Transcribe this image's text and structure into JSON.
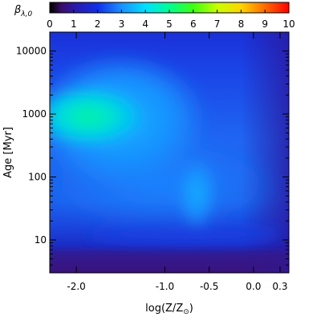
{
  "chart_data": {
    "type": "heatmap",
    "title": "",
    "colorbar": {
      "label": "β",
      "label_sub": "λ,0",
      "range": [
        0,
        10
      ],
      "ticks": [
        0,
        1,
        2,
        3,
        4,
        5,
        6,
        7,
        8,
        9,
        10
      ],
      "tick_labels": [
        "0",
        "1",
        "2",
        "3",
        "4",
        "5",
        "6",
        "7",
        "8",
        "9",
        "10"
      ],
      "colormap": "rainbow",
      "placement": "top"
    },
    "x_axis": {
      "label_main": "log(Z/Z",
      "label_sub": "⊙",
      "label_close": ")",
      "range": [
        -2.3,
        0.4
      ],
      "ticks": [
        -2.0,
        -1.0,
        -0.5,
        0.0,
        0.3
      ],
      "tick_labels": [
        "-2.0",
        "-1.0",
        "-0.5",
        "0.0",
        "0.3"
      ]
    },
    "y_axis": {
      "label": "Age [Myr]",
      "scale": "log",
      "range": [
        3,
        20000
      ],
      "ticks": [
        10,
        100,
        1000,
        10000
      ],
      "tick_labels": [
        "10",
        "100",
        "1000",
        "10000"
      ]
    },
    "grid": false
  }
}
